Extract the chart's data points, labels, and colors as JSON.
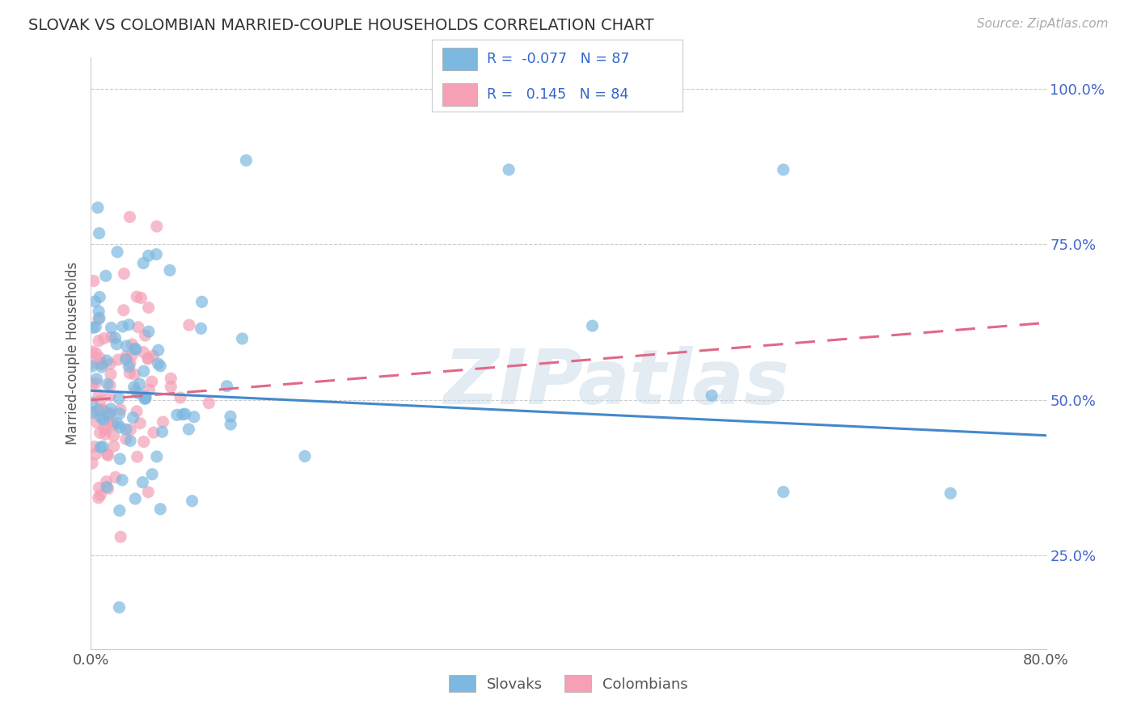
{
  "title": "SLOVAK VS COLOMBIAN MARRIED-COUPLE HOUSEHOLDS CORRELATION CHART",
  "source_text": "Source: ZipAtlas.com",
  "ylabel": "Married-couple Households",
  "slovak_R": -0.077,
  "slovak_N": 87,
  "colombian_R": 0.145,
  "colombian_N": 84,
  "slovak_color": "#7db8e0",
  "colombian_color": "#f5a0b5",
  "trendline_slovak_color": "#4488cc",
  "trendline_colombian_color": "#e06888",
  "background_color": "#ffffff",
  "grid_color": "#cccccc",
  "watermark": "ZIPatlas",
  "legend_labels": [
    "Slovaks",
    "Colombians"
  ],
  "xlim": [
    0.0,
    0.8
  ],
  "ylim": [
    0.1,
    1.05
  ],
  "ytick_positions": [
    0.25,
    0.5,
    0.75,
    1.0
  ],
  "ytick_labels": [
    "25.0%",
    "50.0%",
    "75.0%",
    "100.0%"
  ],
  "xtick_positions": [
    0.0,
    0.2,
    0.4,
    0.6,
    0.8
  ],
  "xtick_labels": [
    "0.0%",
    "",
    "",
    "",
    "80.0%"
  ]
}
